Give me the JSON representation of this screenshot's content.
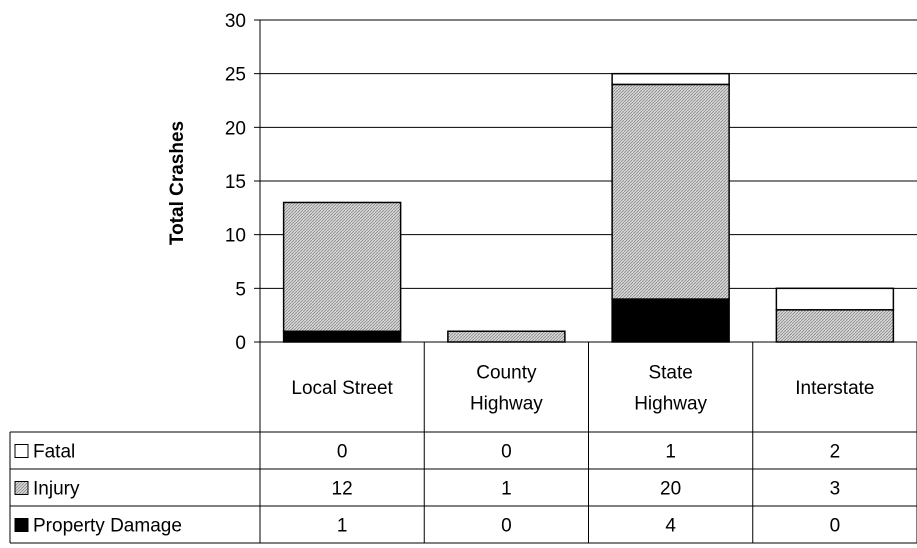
{
  "chart_data": {
    "type": "bar",
    "stacked": true,
    "categories": [
      [
        "Local Street"
      ],
      [
        "County",
        "Highway"
      ],
      [
        "State",
        "Highway"
      ],
      [
        "Interstate"
      ]
    ],
    "series": [
      {
        "name": "Fatal",
        "values": [
          0,
          0,
          1,
          2
        ],
        "color": "#ffffff"
      },
      {
        "name": "Injury",
        "values": [
          12,
          1,
          20,
          3
        ],
        "color": "#c8c8c8",
        "pattern": "hatch"
      },
      {
        "name": "Property Damage",
        "values": [
          1,
          0,
          4,
          0
        ],
        "color": "#000000"
      }
    ],
    "stack_order": [
      "Property Damage",
      "Injury",
      "Fatal"
    ],
    "ylabel": "Total Crashes",
    "ylim": [
      0,
      30
    ],
    "yticks": [
      0,
      5,
      10,
      15,
      20,
      25,
      30
    ],
    "grid": true,
    "legend": "data-table"
  }
}
